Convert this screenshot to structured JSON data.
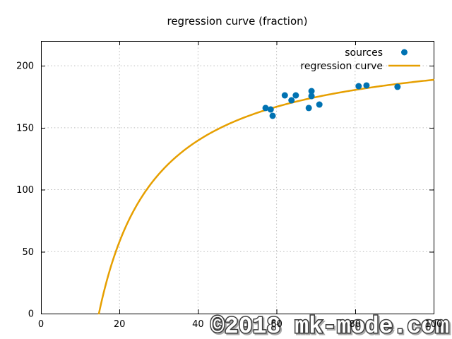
{
  "title": "regression curve (fraction)",
  "watermark": "©2018 mk-mode.com",
  "watermark_style": {
    "fill": "#ffffff",
    "outline": "#3d3d3d",
    "shadow": "#aaaaaa"
  },
  "chart_data": {
    "type": "scatter",
    "title": "regression curve (fraction)",
    "xlabel": "",
    "ylabel": "",
    "xlim": [
      0,
      100
    ],
    "ylim": [
      0,
      220
    ],
    "xticks": [
      0,
      20,
      40,
      60,
      80,
      100
    ],
    "yticks": [
      0,
      50,
      100,
      150,
      200
    ],
    "grid": true,
    "legend": {
      "position": "top-right-inside",
      "entries": [
        "sources",
        "regression curve"
      ]
    },
    "series": [
      {
        "name": "sources",
        "type": "scatter",
        "color": "#0072B2",
        "points": [
          [
            57.2,
            165.9
          ],
          [
            58.5,
            164.7
          ],
          [
            59.0,
            159.6
          ],
          [
            62.1,
            176.1
          ],
          [
            63.8,
            172.1
          ],
          [
            64.9,
            176.1
          ],
          [
            68.2,
            165.9
          ],
          [
            68.9,
            179.5
          ],
          [
            68.9,
            175.5
          ],
          [
            70.9,
            168.7
          ],
          [
            80.9,
            183.5
          ],
          [
            82.9,
            184.1
          ],
          [
            90.8,
            183.0
          ]
        ]
      },
      {
        "name": "regression curve",
        "type": "line",
        "color": "#E69F00",
        "model": "y = a - b/x",
        "a": 221.3,
        "b": 3264.7,
        "x_start": 14.75,
        "x_end": 100
      }
    ],
    "colors": {
      "grid": "#bcbcbc",
      "border": "#000000",
      "tick_label": "#000000"
    }
  }
}
